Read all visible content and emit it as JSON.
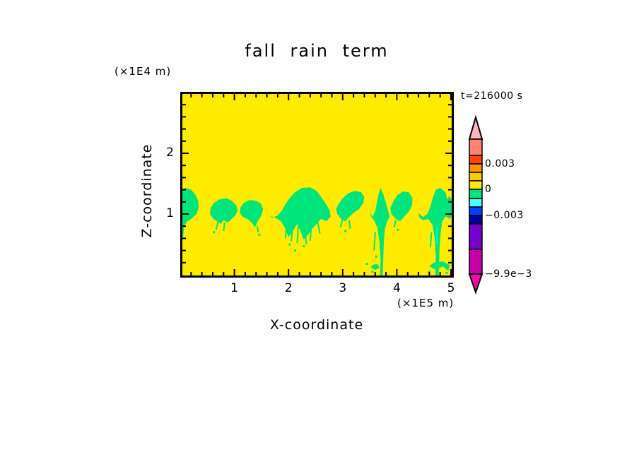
{
  "title": "fall rain term",
  "time_label": "t=216000 s",
  "z_axis": {
    "label": "Z-coordinate",
    "unit": "(×1E4 m)",
    "tick_values": [
      1,
      2
    ],
    "tick_labels": [
      "1",
      "2"
    ],
    "minor_step": 0.2,
    "range": [
      0,
      3.01
    ]
  },
  "x_axis": {
    "label": "X-coordinate",
    "unit": "(×1E5 m)",
    "tick_values": [
      1,
      2,
      3,
      4,
      5
    ],
    "tick_labels": [
      "1",
      "2",
      "3",
      "4",
      "5"
    ],
    "minor_step": 0.2,
    "range": [
      0,
      5.05
    ]
  },
  "chart_data": {
    "type": "heatmap",
    "subtype": "filled-contour",
    "title": "fall rain term",
    "xlabel": "X-coordinate (×1E5 m)",
    "ylabel": "Z-coordinate (×1E4 m)",
    "time_annotation": "t=216000 s",
    "x_range": [
      0,
      5.05
    ],
    "z_range": [
      0,
      3.01
    ],
    "grid": false,
    "background_field": {
      "value_range": [
        0,
        0.001
      ],
      "color": "#FFEB00"
    },
    "negative_band": {
      "value_range": [
        -0.001,
        0
      ],
      "color": "#00E47C",
      "description": "Band of slightly negative fall-rain-term values near z≈1–1.4 (×1E4 m) across all x, with fall streaks reaching the surface near x≈3.7 and x≈4.75 (×1E5 m)."
    },
    "regions": [
      {
        "name": "blob-left-edge",
        "points": [
          [
            0,
            0.78
          ],
          [
            0.07,
            0.8
          ],
          [
            0.13,
            0.88
          ],
          [
            0.22,
            0.93
          ],
          [
            0.3,
            1.0
          ],
          [
            0.34,
            1.1
          ],
          [
            0.33,
            1.22
          ],
          [
            0.28,
            1.32
          ],
          [
            0.2,
            1.4
          ],
          [
            0.1,
            1.43
          ],
          [
            0.02,
            1.4
          ],
          [
            0,
            1.36
          ]
        ]
      },
      {
        "name": "blob-x0.8",
        "points": [
          [
            0.55,
            1.0
          ],
          [
            0.6,
            0.93
          ],
          [
            0.68,
            0.88
          ],
          [
            0.75,
            0.84
          ],
          [
            0.8,
            0.9
          ],
          [
            0.88,
            0.86
          ],
          [
            0.95,
            0.92
          ],
          [
            1.02,
            0.98
          ],
          [
            1.06,
            1.06
          ],
          [
            1.03,
            1.15
          ],
          [
            0.95,
            1.22
          ],
          [
            0.85,
            1.26
          ],
          [
            0.72,
            1.24
          ],
          [
            0.62,
            1.18
          ],
          [
            0.56,
            1.1
          ]
        ]
      },
      {
        "name": "blob-x1.3",
        "points": [
          [
            1.1,
            1.02
          ],
          [
            1.16,
            0.95
          ],
          [
            1.24,
            0.92
          ],
          [
            1.32,
            0.86
          ],
          [
            1.38,
            0.78
          ],
          [
            1.43,
            0.88
          ],
          [
            1.5,
            0.98
          ],
          [
            1.53,
            1.08
          ],
          [
            1.49,
            1.17
          ],
          [
            1.4,
            1.22
          ],
          [
            1.28,
            1.23
          ],
          [
            1.17,
            1.18
          ],
          [
            1.11,
            1.1
          ]
        ]
      },
      {
        "name": "blob-x2.2-large",
        "points": [
          [
            1.62,
            1.0
          ],
          [
            1.7,
            0.94
          ],
          [
            1.8,
            0.98
          ],
          [
            1.88,
            1.06
          ],
          [
            1.94,
            1.16
          ],
          [
            2.02,
            1.26
          ],
          [
            2.12,
            1.36
          ],
          [
            2.25,
            1.43
          ],
          [
            2.4,
            1.44
          ],
          [
            2.52,
            1.38
          ],
          [
            2.6,
            1.28
          ],
          [
            2.68,
            1.18
          ],
          [
            2.76,
            1.06
          ],
          [
            2.78,
            0.96
          ],
          [
            2.7,
            0.88
          ],
          [
            2.6,
            0.92
          ],
          [
            2.52,
            0.84
          ],
          [
            2.44,
            0.76
          ],
          [
            2.36,
            0.66
          ],
          [
            2.28,
            0.58
          ],
          [
            2.22,
            0.72
          ],
          [
            2.16,
            0.84
          ],
          [
            2.08,
            0.72
          ],
          [
            2.0,
            0.62
          ],
          [
            1.94,
            0.76
          ],
          [
            1.86,
            0.88
          ],
          [
            1.76,
            0.94
          ],
          [
            1.66,
            0.97
          ]
        ]
      },
      {
        "name": "blob-x3.1",
        "points": [
          [
            2.9,
            1.0
          ],
          [
            2.97,
            0.92
          ],
          [
            3.05,
            0.88
          ],
          [
            3.12,
            0.95
          ],
          [
            3.2,
            1.02
          ],
          [
            3.3,
            1.08
          ],
          [
            3.38,
            1.18
          ],
          [
            3.4,
            1.28
          ],
          [
            3.34,
            1.36
          ],
          [
            3.22,
            1.38
          ],
          [
            3.1,
            1.34
          ],
          [
            3.0,
            1.26
          ],
          [
            2.92,
            1.16
          ],
          [
            2.88,
            1.08
          ]
        ]
      },
      {
        "name": "blob-x3.7-with-surface-streak",
        "points": [
          [
            3.5,
            1.05
          ],
          [
            3.55,
            0.95
          ],
          [
            3.6,
            1.05
          ],
          [
            3.63,
            1.18
          ],
          [
            3.66,
            1.32
          ],
          [
            3.7,
            1.43
          ],
          [
            3.75,
            1.32
          ],
          [
            3.8,
            1.18
          ],
          [
            3.84,
            1.05
          ],
          [
            3.87,
            0.95
          ],
          [
            3.82,
            0.88
          ],
          [
            3.78,
            0.75
          ],
          [
            3.76,
            0.55
          ],
          [
            3.75,
            0.3
          ],
          [
            3.74,
            0.05
          ],
          [
            3.73,
            -0.04
          ],
          [
            3.69,
            -0.04
          ],
          [
            3.7,
            0.25
          ],
          [
            3.68,
            0.55
          ],
          [
            3.64,
            0.78
          ],
          [
            3.58,
            0.9
          ],
          [
            3.52,
            0.96
          ]
        ]
      },
      {
        "name": "blob-x4.1",
        "points": [
          [
            3.9,
            1.0
          ],
          [
            3.98,
            0.92
          ],
          [
            4.06,
            0.88
          ],
          [
            4.14,
            0.96
          ],
          [
            4.22,
            1.04
          ],
          [
            4.28,
            1.14
          ],
          [
            4.29,
            1.26
          ],
          [
            4.22,
            1.36
          ],
          [
            4.1,
            1.37
          ],
          [
            4.0,
            1.3
          ],
          [
            3.93,
            1.2
          ],
          [
            3.88,
            1.1
          ]
        ]
      },
      {
        "name": "blob-x4.7-with-surface-streak",
        "points": [
          [
            4.4,
            1.02
          ],
          [
            4.48,
            0.95
          ],
          [
            4.56,
            1.0
          ],
          [
            4.62,
            1.12
          ],
          [
            4.66,
            1.26
          ],
          [
            4.72,
            1.4
          ],
          [
            4.8,
            1.43
          ],
          [
            4.9,
            1.36
          ],
          [
            4.93,
            1.24
          ],
          [
            4.97,
            1.3
          ],
          [
            5.04,
            1.2
          ],
          [
            5.05,
            1.0
          ],
          [
            4.98,
            0.92
          ],
          [
            4.9,
            0.96
          ],
          [
            4.84,
            0.88
          ],
          [
            4.81,
            0.7
          ],
          [
            4.79,
            0.45
          ],
          [
            4.78,
            0.15
          ],
          [
            4.77,
            -0.04
          ],
          [
            4.71,
            -0.04
          ],
          [
            4.72,
            0.3
          ],
          [
            4.7,
            0.6
          ],
          [
            4.66,
            0.82
          ],
          [
            4.58,
            0.92
          ],
          [
            4.48,
            0.9
          ],
          [
            4.42,
            0.94
          ]
        ]
      },
      {
        "name": "surface-patch-x3.6",
        "points": [
          [
            3.52,
            0.12
          ],
          [
            3.6,
            0.08
          ],
          [
            3.68,
            0.12
          ],
          [
            3.64,
            0.18
          ],
          [
            3.55,
            0.16
          ]
        ]
      },
      {
        "name": "surface-patch-x4.8",
        "points": [
          [
            4.6,
            0.14
          ],
          [
            4.72,
            0.08
          ],
          [
            4.85,
            0.14
          ],
          [
            4.95,
            0.06
          ],
          [
            4.98,
            0.16
          ],
          [
            4.85,
            0.22
          ],
          [
            4.68,
            0.2
          ]
        ]
      }
    ],
    "streaks": [
      {
        "points": [
          [
            0.06,
            0.8
          ],
          [
            0.04,
            0.62
          ]
        ]
      },
      {
        "points": [
          [
            0.7,
            0.88
          ],
          [
            0.66,
            0.74
          ]
        ]
      },
      {
        "points": [
          [
            0.82,
            0.86
          ],
          [
            0.8,
            0.72
          ]
        ]
      },
      {
        "points": [
          [
            1.42,
            0.8
          ],
          [
            1.44,
            0.7
          ]
        ]
      },
      {
        "points": [
          [
            1.98,
            0.9
          ],
          [
            1.94,
            0.6
          ]
        ]
      },
      {
        "points": [
          [
            2.08,
            0.84
          ],
          [
            2.05,
            0.55
          ]
        ]
      },
      {
        "points": [
          [
            2.18,
            0.8
          ],
          [
            2.16,
            0.52
          ]
        ]
      },
      {
        "points": [
          [
            2.3,
            0.74
          ],
          [
            2.33,
            0.5
          ]
        ]
      },
      {
        "points": [
          [
            2.42,
            0.8
          ],
          [
            2.4,
            0.56
          ]
        ]
      },
      {
        "points": [
          [
            2.54,
            0.86
          ],
          [
            2.58,
            0.68
          ]
        ]
      },
      {
        "points": [
          [
            3.0,
            0.92
          ],
          [
            2.96,
            0.78
          ]
        ]
      },
      {
        "points": [
          [
            3.12,
            0.9
          ],
          [
            3.14,
            0.76
          ]
        ]
      },
      {
        "points": [
          [
            3.6,
            0.7
          ],
          [
            3.58,
            0.4
          ]
        ]
      },
      {
        "points": [
          [
            3.98,
            0.9
          ],
          [
            3.95,
            0.78
          ]
        ]
      },
      {
        "points": [
          [
            4.64,
            0.7
          ],
          [
            4.62,
            0.45
          ]
        ]
      }
    ],
    "speckles": [
      [
        2.02,
        0.5
      ],
      [
        2.28,
        0.47
      ],
      [
        2.12,
        0.4
      ],
      [
        3.62,
        0.3
      ],
      [
        3.7,
        0.45
      ],
      [
        4.76,
        0.3
      ],
      [
        0.62,
        0.7
      ],
      [
        1.46,
        0.66
      ],
      [
        3.05,
        0.72
      ],
      [
        4.02,
        0.74
      ],
      [
        3.55,
        0.05
      ],
      [
        4.6,
        0.05
      ],
      [
        4.92,
        0.03
      ],
      [
        3.45,
        0.18
      ]
    ],
    "cyan_streak": {
      "color": "#00FFFF",
      "points": [
        [
          4.74,
          0.78
        ],
        [
          4.74,
          0.5
        ]
      ]
    },
    "orange_speck": {
      "color": "#FF9400",
      "x": 4.71,
      "z": 0.43
    },
    "colorbar": {
      "orientation": "vertical",
      "labels": [
        {
          "text": "0.003",
          "level": 0.003
        },
        {
          "text": "0",
          "level": 0
        },
        {
          "text": "−0.003",
          "level": -0.003
        },
        {
          "text": "−9.9e−3",
          "level": -0.0099
        }
      ],
      "cells": [
        {
          "color": "#FFB3BE",
          "shape": "arrow-up",
          "value_range": [
            0.006,
            null
          ]
        },
        {
          "color": "#FF8372",
          "value_range": [
            0.004,
            0.006
          ]
        },
        {
          "color": "#FF4500",
          "value_range": [
            0.003,
            0.004
          ]
        },
        {
          "color": "#FF9400",
          "value_range": [
            0.002,
            0.003
          ]
        },
        {
          "color": "#FFC800",
          "value_range": [
            0.001,
            0.002
          ]
        },
        {
          "color": "#FFEB00",
          "value_range": [
            0,
            0.001
          ]
        },
        {
          "color": "#00E47C",
          "value_range": [
            -0.001,
            0
          ]
        },
        {
          "color": "#4DFFFF",
          "value_range": [
            -0.002,
            -0.001
          ]
        },
        {
          "color": "#0040FF",
          "value_range": [
            -0.003,
            -0.002
          ]
        },
        {
          "color": "#0000A0",
          "value_range": [
            -0.004,
            -0.003
          ]
        },
        {
          "color": "#7700CC",
          "value_range": [
            -0.006,
            -0.004
          ]
        },
        {
          "color": "#C800A8",
          "value_range": [
            -0.0099,
            -0.006
          ]
        },
        {
          "color": "#FF00B0",
          "shape": "arrow-down",
          "value_range": [
            null,
            -0.0099
          ]
        }
      ]
    }
  }
}
